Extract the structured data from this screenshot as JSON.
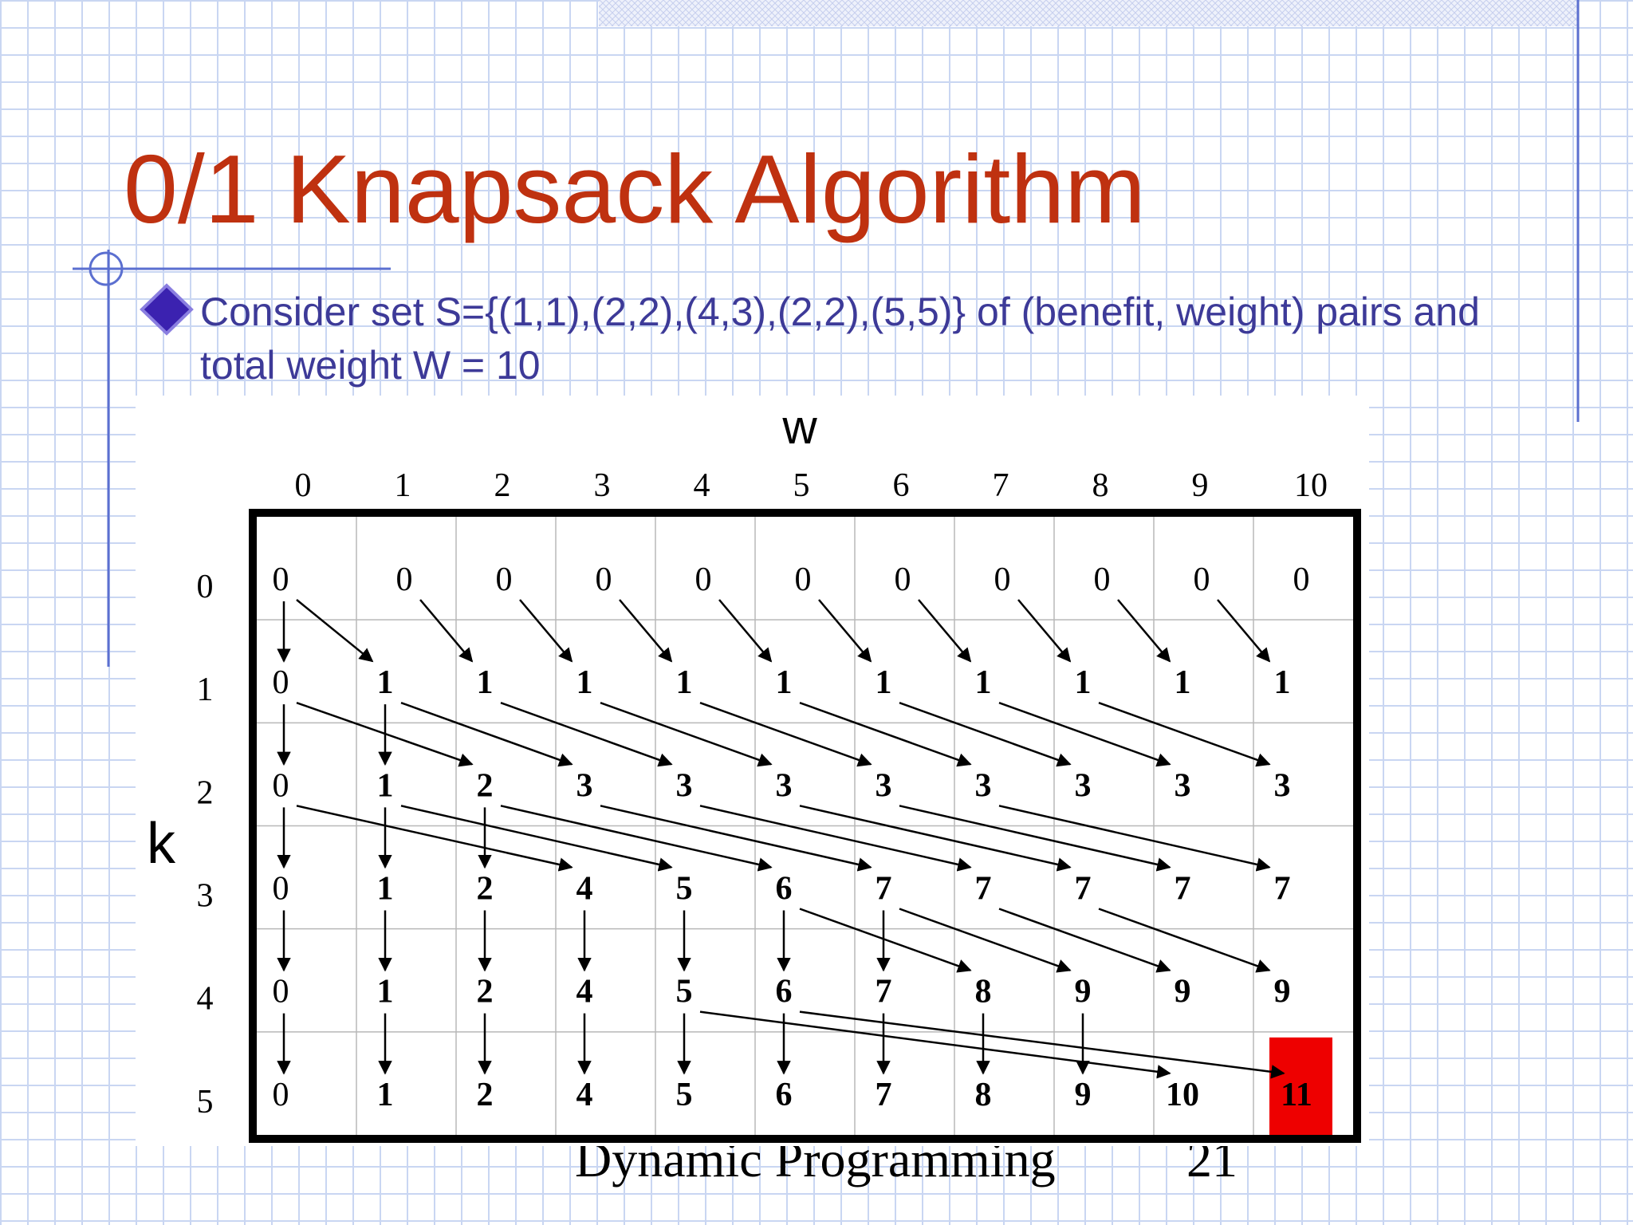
{
  "title": "0/1 Knapsack Algorithm",
  "bullet": "Consider set S={(1,1),(2,2),(4,3),(2,2),(5,5)}  of (benefit, weight) pairs and total weight W = 10",
  "table": {
    "column_axis_label": "w",
    "row_axis_label": "k",
    "column_headers": [
      0,
      1,
      2,
      3,
      4,
      5,
      6,
      7,
      8,
      9,
      10
    ],
    "row_headers": [
      0,
      1,
      2,
      3,
      4,
      5
    ],
    "rows": [
      [
        0,
        0,
        0,
        0,
        0,
        0,
        0,
        0,
        0,
        0,
        0
      ],
      [
        0,
        1,
        1,
        1,
        1,
        1,
        1,
        1,
        1,
        1,
        1
      ],
      [
        0,
        1,
        2,
        3,
        3,
        3,
        3,
        3,
        3,
        3,
        3
      ],
      [
        0,
        1,
        2,
        4,
        5,
        6,
        7,
        7,
        7,
        7,
        7
      ],
      [
        0,
        1,
        2,
        4,
        5,
        6,
        7,
        8,
        9,
        9,
        9
      ],
      [
        0,
        1,
        2,
        4,
        5,
        6,
        7,
        8,
        9,
        10,
        11
      ]
    ]
  },
  "footer": {
    "text": "Dynamic Programming",
    "page": "21"
  }
}
